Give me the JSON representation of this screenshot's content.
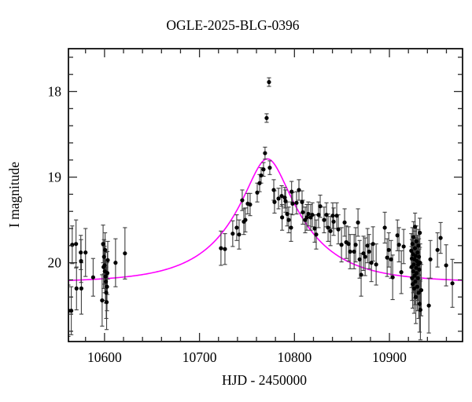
{
  "chart_data": {
    "type": "scatter",
    "title": "OGLE-2025-BLG-0396",
    "xlabel": "HJD - 2450000",
    "ylabel": "I magnitude",
    "xlim": [
      10562,
      10977
    ],
    "ylim": [
      17.5,
      20.92
    ],
    "y_inverted": true,
    "grid": false,
    "x_major_ticks": [
      10600,
      10700,
      10800,
      10900
    ],
    "x_major_tick_labels": [
      "10600",
      "10700",
      "10800",
      "10900"
    ],
    "x_minor_step": 20,
    "y_major_ticks": [
      18,
      19,
      20
    ],
    "y_major_tick_labels": [
      "18",
      "19",
      "20"
    ],
    "y_minor_step": 0.2,
    "colors": {
      "points": "#000000",
      "error_bars": "#3f3f3f",
      "model_curve": "#ff00ff",
      "axis": "#000000"
    },
    "model": {
      "kind": "paczynski-microlensing",
      "t0": 10771.5,
      "tE": 76,
      "u0": 0.272,
      "baseline_mag": 20.23,
      "peak_mag": 18.79
    },
    "points_format": [
      "hjd_minus_2450000",
      "I_mag",
      "err_mag"
    ],
    "points": [
      [
        10562.0,
        20.56,
        0.3
      ],
      [
        10565.0,
        20.56,
        0.28
      ],
      [
        10566.0,
        19.79,
        0.22
      ],
      [
        10570.0,
        19.78,
        0.28
      ],
      [
        10570.5,
        20.3,
        0.25
      ],
      [
        10575.0,
        19.88,
        0.2
      ],
      [
        10575.3,
        19.98,
        0.25
      ],
      [
        10575.6,
        20.3,
        0.3
      ],
      [
        10580.0,
        19.88,
        0.28
      ],
      [
        10588.0,
        20.17,
        0.22
      ],
      [
        10597.5,
        20.44,
        0.3
      ],
      [
        10598.5,
        19.78,
        0.22
      ],
      [
        10599.0,
        20.05,
        0.25
      ],
      [
        10599.5,
        19.93,
        0.2
      ],
      [
        10600.0,
        20.03,
        0.22
      ],
      [
        10600.3,
        20.1,
        0.25
      ],
      [
        10600.6,
        19.85,
        0.2
      ],
      [
        10601.0,
        20.16,
        0.28
      ],
      [
        10601.4,
        20.22,
        0.25
      ],
      [
        10601.8,
        20.35,
        0.3
      ],
      [
        10602.2,
        20.46,
        0.32
      ],
      [
        10602.6,
        20.28,
        0.28
      ],
      [
        10603.0,
        20.12,
        0.25
      ],
      [
        10603.4,
        19.97,
        0.22
      ],
      [
        10611.6,
        20.0,
        0.28
      ],
      [
        10621.5,
        19.89,
        0.3
      ],
      [
        10722.6,
        19.83,
        0.2
      ],
      [
        10726.8,
        19.84,
        0.18
      ],
      [
        10735.0,
        19.66,
        0.15
      ],
      [
        10739.2,
        19.59,
        0.15
      ],
      [
        10741.7,
        19.67,
        0.17
      ],
      [
        10745.0,
        19.27,
        0.12
      ],
      [
        10746.7,
        19.52,
        0.15
      ],
      [
        10748.3,
        19.5,
        0.14
      ],
      [
        10750.8,
        19.31,
        0.12
      ],
      [
        10753.3,
        19.32,
        0.13
      ],
      [
        10760.8,
        19.18,
        0.11
      ],
      [
        10763.3,
        19.07,
        0.1
      ],
      [
        10764.9,
        18.98,
        0.09
      ],
      [
        10767.4,
        18.91,
        0.08
      ],
      [
        10769.0,
        18.72,
        0.07
      ],
      [
        10770.7,
        18.31,
        0.05
      ],
      [
        10773.2,
        17.89,
        0.05
      ],
      [
        10774.0,
        18.89,
        0.08
      ],
      [
        10778.2,
        19.15,
        0.12
      ],
      [
        10779.0,
        19.29,
        0.13
      ],
      [
        10783.2,
        19.25,
        0.12
      ],
      [
        10786.5,
        19.22,
        0.12
      ],
      [
        10787.0,
        19.47,
        0.15
      ],
      [
        10789.8,
        19.24,
        0.12
      ],
      [
        10790.6,
        19.28,
        0.13
      ],
      [
        10792.3,
        19.43,
        0.14
      ],
      [
        10793.9,
        19.5,
        0.15
      ],
      [
        10796.4,
        19.59,
        0.16
      ],
      [
        10797.0,
        19.17,
        0.12
      ],
      [
        10798.0,
        19.31,
        0.13
      ],
      [
        10802.2,
        19.3,
        0.13
      ],
      [
        10804.7,
        19.15,
        0.12
      ],
      [
        10808.0,
        19.29,
        0.13
      ],
      [
        10808.8,
        19.41,
        0.14
      ],
      [
        10811.3,
        19.5,
        0.15
      ],
      [
        10813.0,
        19.47,
        0.15
      ],
      [
        10814.6,
        19.43,
        0.14
      ],
      [
        10817.1,
        19.47,
        0.15
      ],
      [
        10818.8,
        19.44,
        0.14
      ],
      [
        10821.3,
        19.6,
        0.16
      ],
      [
        10822.9,
        19.67,
        0.17
      ],
      [
        10825.4,
        19.44,
        0.15
      ],
      [
        10827.1,
        19.34,
        0.13
      ],
      [
        10831.2,
        19.5,
        0.15
      ],
      [
        10833.7,
        19.44,
        0.14
      ],
      [
        10835.4,
        19.59,
        0.16
      ],
      [
        10837.9,
        19.63,
        0.17
      ],
      [
        10840.3,
        19.45,
        0.15
      ],
      [
        10841.2,
        19.52,
        0.16
      ],
      [
        10844.5,
        19.45,
        0.15
      ],
      [
        10846.2,
        19.61,
        0.17
      ],
      [
        10849.5,
        19.79,
        0.2
      ],
      [
        10852.8,
        19.53,
        0.16
      ],
      [
        10854.5,
        19.76,
        0.19
      ],
      [
        10857.0,
        19.78,
        0.2
      ],
      [
        10858.6,
        19.87,
        0.2
      ],
      [
        10862.8,
        19.87,
        0.2
      ],
      [
        10864.4,
        19.79,
        0.2
      ],
      [
        10866.9,
        19.53,
        0.16
      ],
      [
        10868.6,
        19.96,
        0.22
      ],
      [
        10870.2,
        20.14,
        0.25
      ],
      [
        10872.7,
        19.89,
        0.2
      ],
      [
        10874.4,
        19.93,
        0.22
      ],
      [
        10876.9,
        19.8,
        0.2
      ],
      [
        10878.5,
        19.87,
        0.2
      ],
      [
        10881.0,
        20.0,
        0.22
      ],
      [
        10882.7,
        19.78,
        0.2
      ],
      [
        10886.0,
        20.02,
        0.24
      ],
      [
        10895.1,
        19.59,
        0.18
      ],
      [
        10897.6,
        19.94,
        0.22
      ],
      [
        10899.3,
        19.85,
        0.2
      ],
      [
        10901.7,
        19.96,
        0.22
      ],
      [
        10903.4,
        20.17,
        0.26
      ],
      [
        10908.4,
        19.68,
        0.18
      ],
      [
        10910.0,
        19.79,
        0.2
      ],
      [
        10912.5,
        20.11,
        0.25
      ],
      [
        10915.0,
        19.81,
        0.2
      ],
      [
        10923.0,
        19.86,
        0.2
      ],
      [
        10923.3,
        20.05,
        0.24
      ],
      [
        10923.6,
        19.95,
        0.22
      ],
      [
        10923.9,
        20.18,
        0.26
      ],
      [
        10924.2,
        19.78,
        0.19
      ],
      [
        10924.5,
        20.25,
        0.28
      ],
      [
        10924.8,
        19.9,
        0.21
      ],
      [
        10925.1,
        20.1,
        0.25
      ],
      [
        10925.4,
        19.7,
        0.18
      ],
      [
        10925.7,
        20.02,
        0.23
      ],
      [
        10926.0,
        20.3,
        0.29
      ],
      [
        10926.3,
        19.96,
        0.22
      ],
      [
        10926.6,
        20.15,
        0.26
      ],
      [
        10926.9,
        19.83,
        0.2
      ],
      [
        10927.0,
        19.58,
        0.16
      ],
      [
        10927.2,
        20.22,
        0.27
      ],
      [
        10927.5,
        19.92,
        0.21
      ],
      [
        10927.8,
        20.4,
        0.31
      ],
      [
        10928.1,
        20.06,
        0.24
      ],
      [
        10928.4,
        19.75,
        0.18
      ],
      [
        10928.7,
        20.12,
        0.25
      ],
      [
        10929.0,
        19.98,
        0.22
      ],
      [
        10929.3,
        20.28,
        0.28
      ],
      [
        10929.6,
        19.88,
        0.2
      ],
      [
        10929.9,
        20.18,
        0.26
      ],
      [
        10930.2,
        20.02,
        0.23
      ],
      [
        10930.5,
        19.8,
        0.19
      ],
      [
        10930.8,
        20.35,
        0.3
      ],
      [
        10931.1,
        19.93,
        0.21
      ],
      [
        10931.4,
        20.08,
        0.24
      ],
      [
        10931.7,
        20.48,
        0.33
      ],
      [
        10932.0,
        19.65,
        0.17
      ],
      [
        10932.3,
        20.0,
        0.22
      ],
      [
        10932.6,
        20.55,
        0.35
      ],
      [
        10933.5,
        20.32,
        0.3
      ],
      [
        10941.5,
        20.5,
        0.32
      ],
      [
        10943.1,
        19.96,
        0.22
      ],
      [
        10950.6,
        19.85,
        0.2
      ],
      [
        10953.9,
        19.71,
        0.18
      ],
      [
        10959.7,
        20.03,
        0.24
      ],
      [
        10966.3,
        20.24,
        0.28
      ]
    ]
  }
}
